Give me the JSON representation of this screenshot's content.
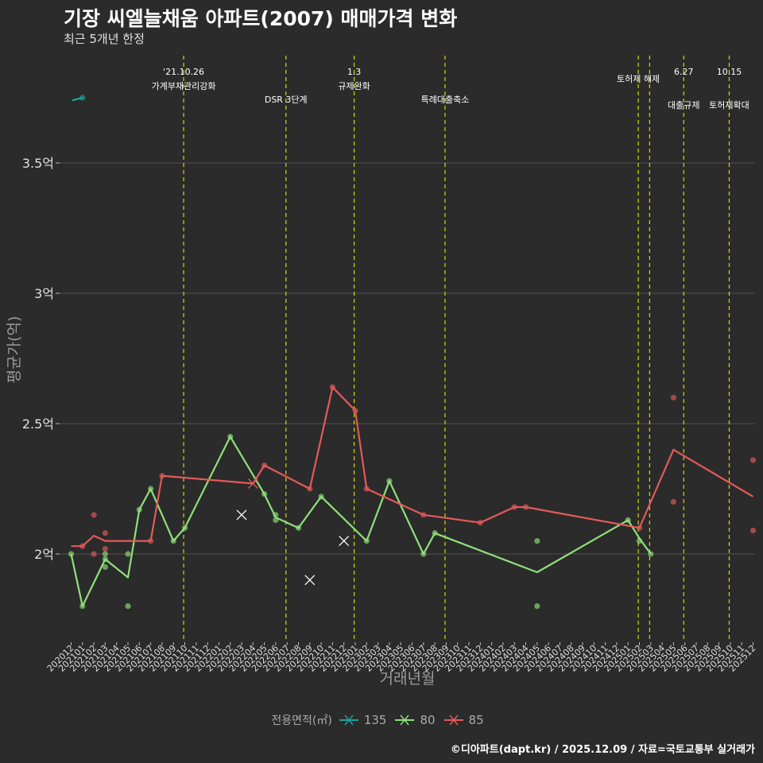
{
  "title": "기장 씨엘늘채움 아파트(2007) 매매가격 변화",
  "subtitle": "최근 5개년 한정",
  "caption": "©디아파트(dapt.kr) / 2025.12.09 / 자료=국토교통부 실거래가",
  "colors": {
    "s135": "#1fa39a",
    "s80": "#8fe07a",
    "s85": "#e35a5a",
    "event": "#d7d700",
    "grid": "#4a4a4a"
  },
  "chart_data": {
    "type": "line",
    "title": "기장 씨엘늘채움 아파트(2007) 매매가격 변화",
    "xlabel": "거래년월",
    "ylabel": "평균가(억)",
    "ylim": [
      1.7,
      3.8
    ],
    "yticks": [
      {
        "v": 2.0,
        "label": "2억"
      },
      {
        "v": 2.5,
        "label": "2.5억"
      },
      {
        "v": 3.0,
        "label": "3억"
      },
      {
        "v": 3.5,
        "label": "3.5억"
      }
    ],
    "categories": [
      "202012",
      "202101",
      "202102",
      "202103",
      "202104",
      "202105",
      "202106",
      "202107",
      "202108",
      "202109",
      "202110",
      "202111",
      "202112",
      "202201",
      "202202",
      "202203",
      "202204",
      "202205",
      "202206",
      "202207",
      "202208",
      "202209",
      "202210",
      "202211",
      "202212",
      "202301",
      "202302",
      "202303",
      "202304",
      "202305",
      "202306",
      "202307",
      "202308",
      "202309",
      "202310",
      "202311",
      "202312",
      "202401",
      "202402",
      "202403",
      "202404",
      "202405",
      "202406",
      "202407",
      "202408",
      "202409",
      "202410",
      "202411",
      "202412",
      "202501",
      "202502",
      "202503",
      "202504",
      "202505",
      "202506",
      "202507",
      "202508",
      "202509",
      "202510",
      "202511",
      "202512"
    ],
    "legend_title": "전용면적(㎡)",
    "series": [
      {
        "name": "135",
        "color": "#1fa39a",
        "line": [
          [
            0.1,
            3.74
          ],
          [
            1,
            3.75
          ]
        ],
        "points": [
          [
            1,
            3.75
          ]
        ],
        "cross": []
      },
      {
        "name": "80",
        "color": "#8fe07a",
        "line": [
          [
            0,
            2.0
          ],
          [
            1,
            1.8
          ],
          [
            3,
            1.98
          ],
          [
            5,
            1.91
          ],
          [
            6,
            2.17
          ],
          [
            7,
            2.25
          ],
          [
            9,
            2.05
          ],
          [
            10,
            2.1
          ],
          [
            14,
            2.45
          ],
          [
            17,
            2.23
          ],
          [
            18,
            2.14
          ],
          [
            20,
            2.1
          ],
          [
            22,
            2.22
          ],
          [
            26,
            2.05
          ],
          [
            28,
            2.28
          ],
          [
            31,
            2.0
          ],
          [
            32,
            2.08
          ],
          [
            41,
            1.93
          ],
          [
            49,
            2.13
          ],
          [
            50,
            2.06
          ],
          [
            51,
            2.0
          ]
        ],
        "points": [
          [
            0,
            2.0
          ],
          [
            1,
            1.8
          ],
          [
            3,
            1.98
          ],
          [
            3,
            1.95
          ],
          [
            3,
            2.0
          ],
          [
            5,
            1.8
          ],
          [
            5,
            2.0
          ],
          [
            6,
            2.17
          ],
          [
            7,
            2.25
          ],
          [
            9,
            2.05
          ],
          [
            10,
            2.1
          ],
          [
            14,
            2.45
          ],
          [
            17,
            2.23
          ],
          [
            18,
            2.15
          ],
          [
            18,
            2.13
          ],
          [
            20,
            2.1
          ],
          [
            22,
            2.22
          ],
          [
            26,
            2.05
          ],
          [
            28,
            2.28
          ],
          [
            31,
            2.0
          ],
          [
            32,
            2.08
          ],
          [
            41,
            2.05
          ],
          [
            41,
            1.8
          ],
          [
            49,
            2.13
          ],
          [
            50,
            2.05
          ],
          [
            51,
            2.0
          ]
        ],
        "cross": [
          [
            15,
            2.15
          ],
          [
            21,
            1.9
          ],
          [
            24,
            2.05
          ]
        ]
      },
      {
        "name": "85",
        "color": "#e35a5a",
        "line": [
          [
            0,
            2.03
          ],
          [
            1,
            2.03
          ],
          [
            2,
            2.07
          ],
          [
            3,
            2.05
          ],
          [
            7,
            2.05
          ],
          [
            8,
            2.3
          ],
          [
            16,
            2.27
          ],
          [
            17,
            2.34
          ],
          [
            21,
            2.25
          ],
          [
            23,
            2.64
          ],
          [
            25,
            2.55
          ],
          [
            26,
            2.25
          ],
          [
            31,
            2.15
          ],
          [
            36,
            2.12
          ],
          [
            39,
            2.18
          ],
          [
            40,
            2.18
          ],
          [
            50,
            2.1
          ],
          [
            53,
            2.4
          ],
          [
            60,
            2.22
          ]
        ],
        "points": [
          [
            1,
            2.03
          ],
          [
            2,
            2.15
          ],
          [
            2,
            2.0
          ],
          [
            3,
            2.08
          ],
          [
            3,
            2.02
          ],
          [
            7,
            2.05
          ],
          [
            8,
            2.3
          ],
          [
            17,
            2.34
          ],
          [
            21,
            2.25
          ],
          [
            23,
            2.64
          ],
          [
            25,
            2.55
          ],
          [
            26,
            2.25
          ],
          [
            31,
            2.15
          ],
          [
            36,
            2.12
          ],
          [
            39,
            2.18
          ],
          [
            40,
            2.18
          ],
          [
            50,
            2.1
          ],
          [
            53,
            2.6
          ],
          [
            53,
            2.2
          ],
          [
            60,
            2.36
          ],
          [
            60,
            2.09
          ]
        ],
        "cross": [
          [
            16,
            2.27
          ]
        ]
      }
    ],
    "events": [
      {
        "pos": 9.9,
        "line1": "'21.10.26",
        "line2": "가계부채관리강화"
      },
      {
        "pos": 18.9,
        "line1": "",
        "line2": "DSR 3단계"
      },
      {
        "pos": 24.9,
        "line1": "1.3",
        "line2": "규제완화"
      },
      {
        "pos": 32.9,
        "line1": "",
        "line2": "특례대출축소"
      },
      {
        "pos": 49.9,
        "line1": "토허제 해제",
        "line2": ""
      },
      {
        "pos": 50.9,
        "line1": "",
        "line2": ""
      },
      {
        "pos": 53.9,
        "line1": "6.27",
        "line2": "대출규제"
      },
      {
        "pos": 57.9,
        "line1": "10.15",
        "line2": "토허제확대"
      }
    ]
  }
}
